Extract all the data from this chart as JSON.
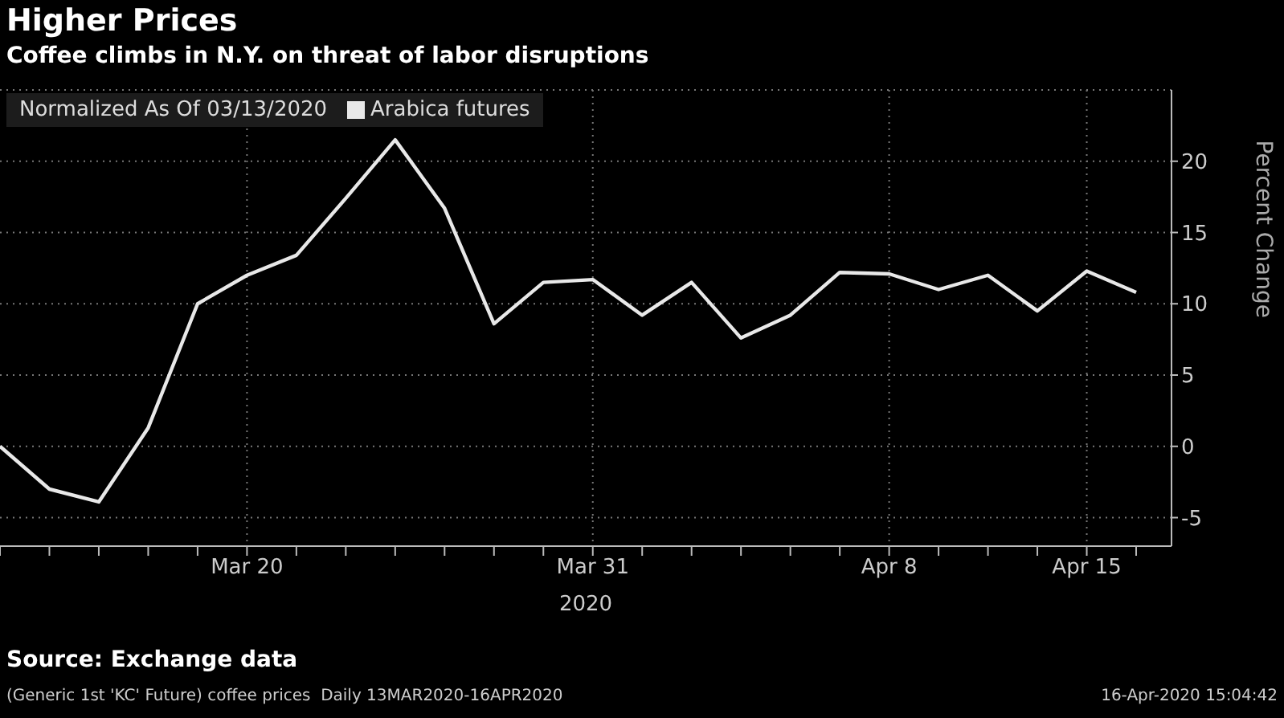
{
  "chart_data": {
    "type": "line",
    "title": "Higher Prices",
    "subtitle": "Coffee climbs in N.Y. on threat of labor disruptions",
    "ylabel": "Percent Change",
    "xlabel": "2020",
    "legend_title": "Normalized As Of 03/13/2020",
    "categories": [
      null,
      null,
      null,
      null,
      null,
      "Mar 20",
      null,
      null,
      null,
      null,
      null,
      null,
      "Mar 31",
      null,
      null,
      null,
      null,
      null,
      "Apr 8",
      null,
      null,
      null,
      "Apr 15",
      null
    ],
    "series": [
      {
        "name": "Arabica futures",
        "color": "#e8e8e8",
        "values": [
          0,
          -3.0,
          -3.9,
          1.3,
          10.0,
          12.0,
          13.4,
          17.4,
          21.5,
          16.7,
          8.6,
          11.5,
          11.7,
          9.2,
          11.5,
          7.6,
          9.2,
          12.2,
          12.1,
          11.0,
          12.0,
          9.5,
          12.3,
          10.8
        ]
      }
    ],
    "ylim": [
      -7,
      25
    ],
    "yticks": [
      -5,
      0,
      5,
      10,
      15,
      20
    ],
    "grid": true,
    "legend": "top left",
    "marker": "none",
    "line_style": "solid",
    "annotations": [
      "Source: Exchange data",
      "(Generic 1st 'KC' Future) coffee prices  Daily 13MAR2020-16APR2020",
      "16-Apr-2020 15:04:42"
    ]
  }
}
